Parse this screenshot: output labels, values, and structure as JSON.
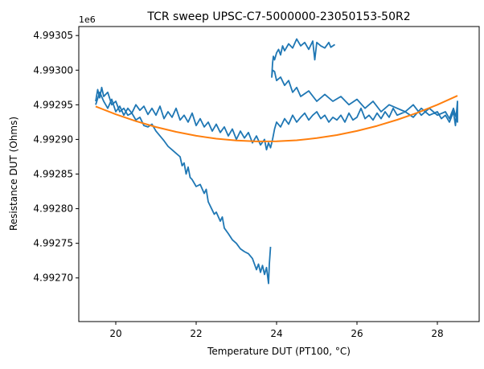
{
  "chart_data": {
    "type": "line",
    "title": "TCR sweep UPSC-C7-5000000-23050153-50R2",
    "xlabel": "Temperature DUT (PT100, °C)",
    "ylabel": "Resistance DUT (Ohms)",
    "y_offset_label": "1e6",
    "xlim": [
      19.08,
      29.04
    ],
    "ylim": [
      4992637,
      4993063
    ],
    "x_ticks": [
      20,
      22,
      24,
      26,
      28
    ],
    "x_tick_labels": [
      "20",
      "22",
      "24",
      "26",
      "28"
    ],
    "y_ticks": [
      4992700,
      4992750,
      4992800,
      4992850,
      4992900,
      4992950,
      4993000,
      4993050
    ],
    "y_tick_labels": [
      "4.99270",
      "4.99275",
      "4.99280",
      "4.99285",
      "4.99290",
      "4.99295",
      "4.99300",
      "4.99305"
    ],
    "grid": false,
    "legend": "none",
    "series": [
      {
        "color": "#1f77b4",
        "segments": [
          [
            [
              19.5,
              4992955
            ],
            [
              19.55,
              4992972
            ],
            [
              19.6,
              4992960
            ],
            [
              19.65,
              4992975
            ],
            [
              19.7,
              4992962
            ],
            [
              19.8,
              4992968
            ],
            [
              19.9,
              4992950
            ],
            [
              20,
              4992955
            ],
            [
              20.1,
              4992940
            ],
            [
              20.2,
              4992945
            ],
            [
              20.3,
              4992935
            ],
            [
              20.4,
              4992938
            ],
            [
              20.5,
              4992928
            ],
            [
              20.6,
              4992932
            ],
            [
              20.7,
              4992920
            ],
            [
              20.8,
              4992918
            ],
            [
              20.9,
              4992922
            ],
            [
              21,
              4992912
            ],
            [
              21.1,
              4992905
            ],
            [
              21.2,
              4992898
            ],
            [
              21.3,
              4992890
            ],
            [
              21.4,
              4992885
            ],
            [
              21.5,
              4992880
            ],
            [
              21.6,
              4992875
            ],
            [
              21.65,
              4992862
            ],
            [
              21.7,
              4992866
            ],
            [
              21.75,
              4992850
            ],
            [
              21.8,
              4992860
            ],
            [
              21.85,
              4992845
            ],
            [
              21.9,
              4992842
            ],
            [
              22,
              4992832
            ],
            [
              22.1,
              4992835
            ],
            [
              22.2,
              4992822
            ],
            [
              22.25,
              4992828
            ],
            [
              22.3,
              4992810
            ],
            [
              22.4,
              4992798
            ],
            [
              22.45,
              4992792
            ],
            [
              22.5,
              4992795
            ],
            [
              22.6,
              4992782
            ],
            [
              22.65,
              4992788
            ],
            [
              22.7,
              4992772
            ],
            [
              22.8,
              4992764
            ],
            [
              22.9,
              4992755
            ],
            [
              23,
              4992750
            ],
            [
              23.1,
              4992742
            ],
            [
              23.2,
              4992738
            ],
            [
              23.3,
              4992735
            ],
            [
              23.4,
              4992728
            ],
            [
              23.45,
              4992720
            ],
            [
              23.5,
              4992712
            ],
            [
              23.55,
              4992720
            ],
            [
              23.6,
              4992708
            ],
            [
              23.65,
              4992718
            ],
            [
              23.7,
              4992705
            ],
            [
              23.75,
              4992715
            ],
            [
              23.8,
              4992692
            ],
            [
              23.82,
              4992720
            ],
            [
              23.85,
              4992745
            ]
          ],
          [
            [
              19.5,
              4992950
            ],
            [
              19.6,
              4992968
            ],
            [
              19.7,
              4992955
            ],
            [
              19.8,
              4992945
            ],
            [
              19.9,
              4992958
            ],
            [
              20,
              4992940
            ],
            [
              20.1,
              4992948
            ],
            [
              20.2,
              4992935
            ],
            [
              20.3,
              4992945
            ],
            [
              20.4,
              4992938
            ],
            [
              20.5,
              4992950
            ],
            [
              20.6,
              4992942
            ],
            [
              20.7,
              4992948
            ],
            [
              20.8,
              4992936
            ],
            [
              20.9,
              4992945
            ],
            [
              21,
              4992935
            ],
            [
              21.1,
              4992948
            ],
            [
              21.2,
              4992930
            ],
            [
              21.3,
              4992940
            ],
            [
              21.4,
              4992932
            ],
            [
              21.5,
              4992945
            ],
            [
              21.6,
              4992928
            ],
            [
              21.7,
              4992935
            ],
            [
              21.8,
              4992925
            ],
            [
              21.9,
              4992938
            ],
            [
              22,
              4992920
            ],
            [
              22.1,
              4992930
            ],
            [
              22.2,
              4992918
            ],
            [
              22.3,
              4992925
            ],
            [
              22.4,
              4992912
            ],
            [
              22.5,
              4992922
            ],
            [
              22.6,
              4992910
            ],
            [
              22.7,
              4992918
            ],
            [
              22.8,
              4992905
            ],
            [
              22.9,
              4992915
            ],
            [
              23,
              4992900
            ],
            [
              23.1,
              4992912
            ],
            [
              23.2,
              4992902
            ],
            [
              23.3,
              4992910
            ],
            [
              23.4,
              4992895
            ],
            [
              23.5,
              4992905
            ],
            [
              23.6,
              4992892
            ],
            [
              23.7,
              4992900
            ],
            [
              23.75,
              4992885
            ],
            [
              23.8,
              4992895
            ],
            [
              23.85,
              4992888
            ],
            [
              23.9,
              4992900
            ]
          ],
          [
            [
              23.9,
              4992900
            ],
            [
              23.95,
              4992915
            ],
            [
              24,
              4992925
            ],
            [
              24.1,
              4992918
            ],
            [
              24.2,
              4992930
            ],
            [
              24.3,
              4992922
            ],
            [
              24.4,
              4992935
            ],
            [
              24.5,
              4992925
            ],
            [
              24.6,
              4992932
            ],
            [
              24.7,
              4992938
            ],
            [
              24.8,
              4992928
            ],
            [
              24.9,
              4992935
            ],
            [
              25,
              4992940
            ],
            [
              25.1,
              4992930
            ],
            [
              25.2,
              4992935
            ],
            [
              25.3,
              4992925
            ],
            [
              25.4,
              4992932
            ],
            [
              25.5,
              4992928
            ],
            [
              25.6,
              4992935
            ],
            [
              25.7,
              4992925
            ],
            [
              25.8,
              4992938
            ],
            [
              25.9,
              4992928
            ],
            [
              26,
              4992932
            ],
            [
              26.1,
              4992945
            ],
            [
              26.2,
              4992930
            ],
            [
              26.3,
              4992935
            ],
            [
              26.4,
              4992928
            ],
            [
              26.5,
              4992938
            ],
            [
              26.6,
              4992930
            ],
            [
              26.7,
              4992940
            ],
            [
              26.8,
              4992932
            ],
            [
              26.9,
              4992945
            ],
            [
              27,
              4992935
            ],
            [
              27.2,
              4992940
            ],
            [
              27.4,
              4992932
            ],
            [
              27.6,
              4992945
            ],
            [
              27.8,
              4992935
            ],
            [
              28,
              4992940
            ],
            [
              28.1,
              4992930
            ],
            [
              28.2,
              4992935
            ],
            [
              28.3,
              4992925
            ],
            [
              28.4,
              4992940
            ],
            [
              28.45,
              4992920
            ],
            [
              28.5,
              4992955
            ],
            [
              28.5,
              4992925
            ],
            [
              28.4,
              4992945
            ],
            [
              28.3,
              4992930
            ],
            [
              28.2,
              4992940
            ],
            [
              28.0,
              4992935
            ],
            [
              27.8,
              4992945
            ],
            [
              27.6,
              4992935
            ],
            [
              27.4,
              4992950
            ],
            [
              27.2,
              4992940
            ],
            [
              27.0,
              4992945
            ],
            [
              26.8,
              4992950
            ],
            [
              26.6,
              4992940
            ],
            [
              26.4,
              4992955
            ],
            [
              26.2,
              4992945
            ],
            [
              26.0,
              4992958
            ],
            [
              25.8,
              4992950
            ],
            [
              25.6,
              4992962
            ],
            [
              25.4,
              4992955
            ],
            [
              25.2,
              4992965
            ],
            [
              25.0,
              4992955
            ],
            [
              24.8,
              4992970
            ],
            [
              24.6,
              4992962
            ],
            [
              24.5,
              4992975
            ],
            [
              24.4,
              4992968
            ],
            [
              24.3,
              4992985
            ],
            [
              24.2,
              4992978
            ],
            [
              24.1,
              4992990
            ],
            [
              24.0,
              4992985
            ],
            [
              23.95,
              4992998
            ],
            [
              23.9,
              4993000
            ],
            [
              23.88,
              4992990
            ],
            [
              23.9,
              4993010
            ],
            [
              23.92,
              4993020
            ],
            [
              23.95,
              4993015
            ],
            [
              24.0,
              4993025
            ],
            [
              24.05,
              4993030
            ],
            [
              24.1,
              4993022
            ],
            [
              24.15,
              4993035
            ],
            [
              24.2,
              4993028
            ],
            [
              24.3,
              4993038
            ],
            [
              24.4,
              4993032
            ],
            [
              24.5,
              4993045
            ],
            [
              24.6,
              4993035
            ],
            [
              24.7,
              4993040
            ],
            [
              24.8,
              4993030
            ],
            [
              24.9,
              4993042
            ],
            [
              24.95,
              4993015
            ],
            [
              25.0,
              4993040
            ],
            [
              25.1,
              4993035
            ],
            [
              25.2,
              4993032
            ],
            [
              25.3,
              4993040
            ],
            [
              25.35,
              4993033
            ],
            [
              25.45,
              4993037
            ]
          ]
        ]
      },
      {
        "color": "#ff7f0e",
        "segments": [
          [
            [
              19.5,
              4992947.6
            ],
            [
              20,
              4992936.3
            ],
            [
              20.5,
              4992926.4
            ],
            [
              21,
              4992917.9
            ],
            [
              21.5,
              4992910.9
            ],
            [
              22,
              4992905.3
            ],
            [
              22.5,
              4992901.1
            ],
            [
              23,
              4992898.4
            ],
            [
              23.5,
              4992897.1
            ],
            [
              24,
              4992897.3
            ],
            [
              24.5,
              4992898.8
            ],
            [
              25,
              4992901.9
            ],
            [
              25.5,
              4992906.3
            ],
            [
              26,
              4992912.2
            ],
            [
              26.5,
              4992919.5
            ],
            [
              27,
              4992928.3
            ],
            [
              27.5,
              4992938.4
            ],
            [
              28,
              4992950.1
            ],
            [
              28.5,
              4992963.1
            ]
          ]
        ]
      }
    ]
  }
}
